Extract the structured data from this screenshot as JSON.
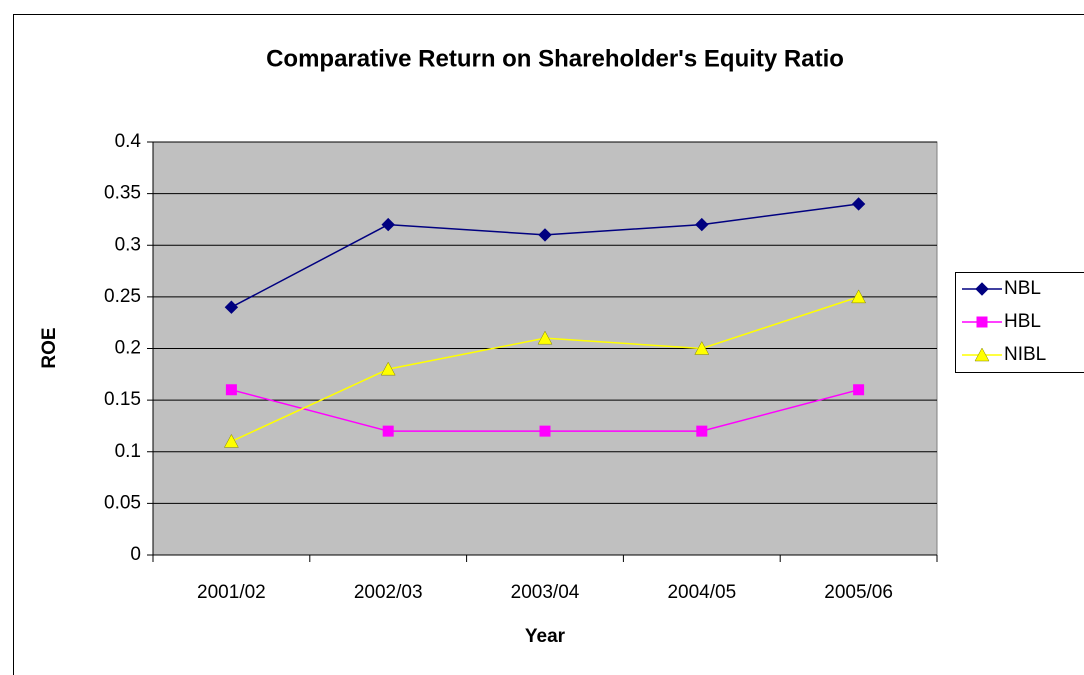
{
  "chart_data": {
    "type": "line",
    "title": "Comparative Return on Shareholder's Equity Ratio",
    "x_label": "Year",
    "y_label": "ROE",
    "categories": [
      "2001/02",
      "2002/03",
      "2003/04",
      "2004/05",
      "2005/06"
    ],
    "series": [
      {
        "name": "NBL",
        "color": "#000080",
        "marker": "diamond",
        "values": [
          0.24,
          0.32,
          0.31,
          0.32,
          0.34
        ]
      },
      {
        "name": "HBL",
        "color": "#ff00ff",
        "marker": "square",
        "values": [
          0.16,
          0.12,
          0.12,
          0.12,
          0.16
        ]
      },
      {
        "name": "NIBL",
        "color": "#ffff00",
        "marker": "triangle",
        "values": [
          0.11,
          0.18,
          0.21,
          0.2,
          0.25
        ]
      }
    ],
    "ylim": [
      0,
      0.4
    ],
    "yticks": [
      0,
      0.05,
      0.1,
      0.15,
      0.2,
      0.25,
      0.3,
      0.35,
      0.4
    ],
    "grid": true,
    "legend": "right"
  }
}
